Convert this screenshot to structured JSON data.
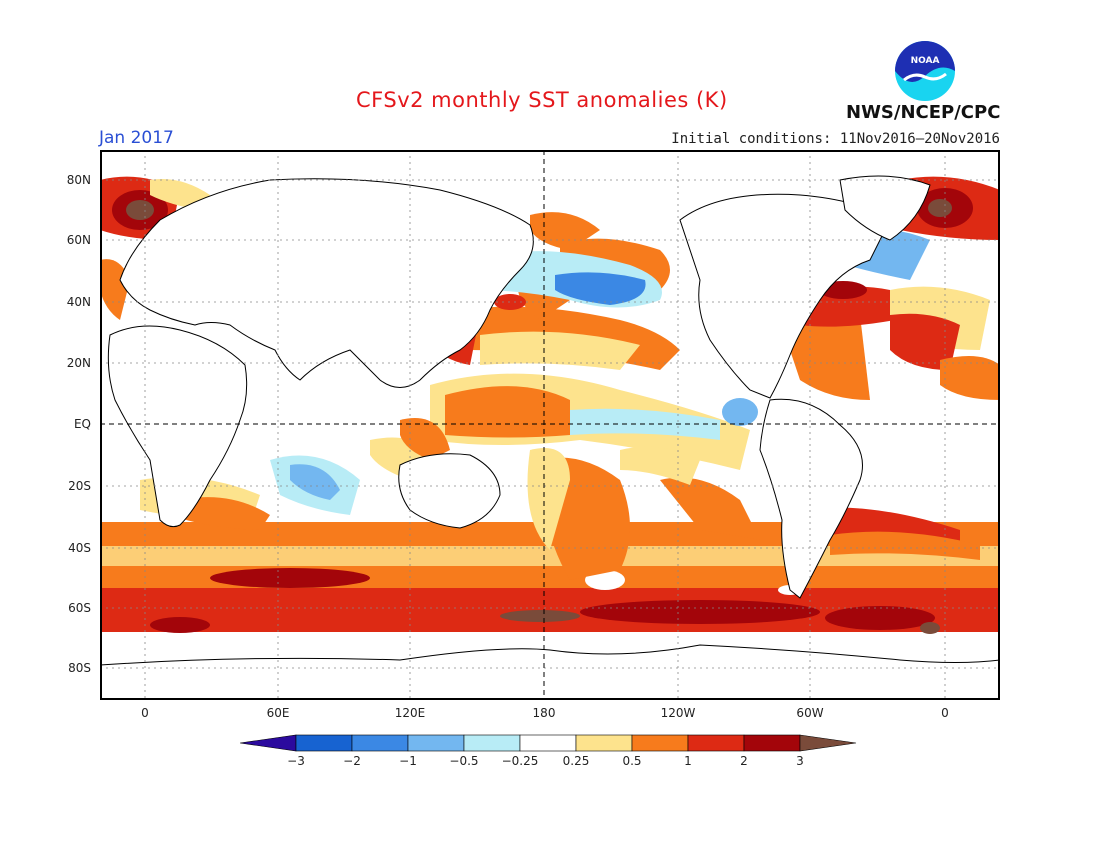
{
  "header": {
    "title": "CFSv2 monthly SST anomalies (K)",
    "valid_month": "Jan 2017",
    "initial_conditions": "Initial conditions: 11Nov2016–20Nov2016",
    "agency": "NWS/NCEP/CPC",
    "logo_text": "NOAA"
  },
  "map": {
    "projection": "cylindrical-equidistant",
    "center_longitude": 180,
    "lat_range": [
      -90,
      90
    ],
    "gridlines": "dotted",
    "reference_lines": [
      "equator",
      "dateline"
    ],
    "lat_labels": [
      "80N",
      "60N",
      "40N",
      "20N",
      "EQ",
      "20S",
      "40S",
      "60S",
      "80S"
    ],
    "lon_labels": [
      "0",
      "60E",
      "120E",
      "180",
      "120W",
      "60W",
      "0"
    ]
  },
  "colorbar": {
    "labels": [
      "−3",
      "−2",
      "−1",
      "−0.5",
      "−0.25",
      "0.25",
      "0.5",
      "1",
      "2",
      "3"
    ],
    "colors": [
      "#2b0a9e",
      "#1763d1",
      "#3b88e4",
      "#73b7f0",
      "#b8ecf6",
      "#ffffff",
      "#fde38d",
      "#f77b1c",
      "#dd2a14",
      "#a3050a",
      "#7a4b3a"
    ]
  },
  "colors": {
    "title": "#e4171b",
    "month": "#2a4fd4",
    "land": "#ffffff",
    "coast": "#000000"
  }
}
